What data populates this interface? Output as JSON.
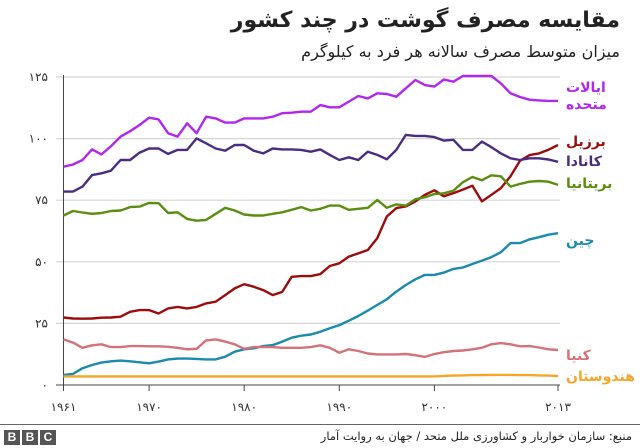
{
  "header": {
    "title": "مقایسه مصرف گوشت در چند کشور",
    "subtitle": "میزان متوسط مصرف سالانه هر فرد به کیلوگرم"
  },
  "footer": {
    "source": "منبع: سازمان خواربار و کشاورزی ملل متحد / جهان به روایت آمار",
    "logo": "BBC"
  },
  "chart_data": {
    "type": "line",
    "title": "مقایسه مصرف گوشت در چند کشور",
    "subtitle": "میزان متوسط مصرف سالانه هر فرد به کیلوگرم",
    "xlim": [
      1961,
      2013
    ],
    "ylim": [
      0,
      125
    ],
    "grid": true,
    "legend": "direct labels at right end of lines",
    "x_ticks": [
      {
        "value": 1961,
        "label": "۱۹۶۱"
      },
      {
        "value": 1970,
        "label": "۱۹۷۰"
      },
      {
        "value": 1980,
        "label": "۱۹۸۰"
      },
      {
        "value": 1990,
        "label": "۱۹۹۰"
      },
      {
        "value": 2000,
        "label": "۲۰۰۰"
      },
      {
        "value": 2013,
        "label": "۲۰۱۳"
      }
    ],
    "y_ticks": [
      {
        "value": 0,
        "label": "۰"
      },
      {
        "value": 25,
        "label": "۲۵"
      },
      {
        "value": 50,
        "label": "۵۰"
      },
      {
        "value": 75,
        "label": "۷۵"
      },
      {
        "value": 100,
        "label": "۱۰۰"
      },
      {
        "value": 125,
        "label": "۱۲۵"
      }
    ],
    "x_start": 1961,
    "x_step": 1,
    "series": [
      {
        "name": "ایالات متحده",
        "color": "#b027ee",
        "values": [
          88.6,
          89.5,
          91.3,
          95.6,
          93.6,
          96.9,
          100.8,
          103,
          105.5,
          108.5,
          107.8,
          102.2,
          100.8,
          106.2,
          102.2,
          108.9,
          108.2,
          106.5,
          106.5,
          108.2,
          108.2,
          108.2,
          108.9,
          110.3,
          110.5,
          110.9,
          110.9,
          113.6,
          112.7,
          112.7,
          115,
          117.3,
          116.3,
          118.4,
          118.1,
          117,
          120.4,
          123.8,
          121.7,
          121.1,
          124,
          123.1,
          125.4,
          125.4,
          125.4,
          125.4,
          122.4,
          118.4,
          116.9,
          115.8,
          115.5,
          115.3,
          115.3
        ]
      },
      {
        "name": "برزیل",
        "color": "#9b0d0d",
        "values": [
          27.4,
          27,
          26.9,
          27,
          27.3,
          27.4,
          27.7,
          29.7,
          30.4,
          30.4,
          29,
          31.1,
          31.7,
          31.1,
          31.7,
          33.1,
          33.8,
          36.5,
          39.2,
          40.9,
          39.9,
          38.5,
          36.5,
          37.8,
          43.9,
          44.2,
          44.2,
          45,
          48.3,
          49.4,
          52.1,
          53.4,
          54.8,
          59.6,
          68.4,
          71.8,
          72.5,
          74.5,
          77.2,
          79,
          76.6,
          77.9,
          79.3,
          80.9,
          74.5,
          77.2,
          79.9,
          84.7,
          91,
          93.3,
          94,
          95.5,
          97.4
        ]
      },
      {
        "name": "کانادا",
        "color": "#4b2c80",
        "values": [
          78.5,
          78.5,
          80.5,
          85.2,
          85.9,
          87,
          91.3,
          91.3,
          94.3,
          96,
          96,
          93.8,
          95.4,
          95.4,
          100.1,
          98.1,
          96,
          95.1,
          97.4,
          97.4,
          95.1,
          94,
          96,
          95.6,
          95.6,
          95.4,
          94.7,
          95.6,
          93.4,
          91.3,
          92.4,
          91.3,
          94.7,
          93.4,
          91.6,
          95.4,
          101.5,
          101.1,
          101.1,
          100.6,
          99.2,
          99.5,
          95.4,
          95.4,
          98.8,
          96.5,
          94,
          92,
          91.3,
          92,
          92,
          91.5,
          90.6
        ]
      },
      {
        "name": "بریتانیا",
        "color": "#5b8e10",
        "values": [
          68.8,
          70.6,
          70,
          69.5,
          69.8,
          70.6,
          70.8,
          72.2,
          72.4,
          73.9,
          73.8,
          69.8,
          70.1,
          67.4,
          66.7,
          67,
          69.5,
          71.9,
          70.8,
          69.2,
          68.8,
          68.8,
          69.5,
          70.1,
          71.1,
          72.2,
          70.8,
          71.5,
          72.8,
          72.8,
          71.1,
          71.5,
          71.9,
          75.1,
          71.9,
          73.3,
          72.8,
          75.4,
          76.2,
          77.5,
          77.8,
          78.9,
          82.3,
          84.4,
          83.1,
          85.1,
          84.7,
          80.5,
          81.6,
          82.5,
          82.8,
          82.5,
          81.2
        ]
      },
      {
        "name": "چین",
        "color": "#1b8aab",
        "values": [
          4.1,
          4.5,
          6.8,
          8.1,
          9.1,
          9.6,
          9.9,
          9.6,
          9.2,
          8.8,
          9.5,
          10.4,
          10.7,
          10.7,
          10.6,
          10.4,
          10.4,
          11.5,
          13.5,
          14.5,
          14.9,
          15.8,
          16.2,
          17.6,
          19.2,
          20,
          20.5,
          21.6,
          23,
          24.3,
          26.1,
          28,
          30.2,
          32.5,
          34.8,
          37.9,
          40.6,
          42.9,
          44.7,
          44.7,
          45.6,
          47.1,
          47.7,
          49.1,
          50.5,
          51.9,
          53.9,
          57.6,
          57.6,
          59.1,
          60,
          61,
          61.6
        ]
      },
      {
        "name": "کنیا",
        "color": "#d4727a",
        "values": [
          18.5,
          17.2,
          15.1,
          16.1,
          16.5,
          15.4,
          15.4,
          15.8,
          15.8,
          15.7,
          15.7,
          15.5,
          15.1,
          14.5,
          14.7,
          18.1,
          18.5,
          17.6,
          16.5,
          14.7,
          15.4,
          15.4,
          15.4,
          15.1,
          15.1,
          15.1,
          15.4,
          16.1,
          15.1,
          13.1,
          14.5,
          13.8,
          12.8,
          12.4,
          12.4,
          12.4,
          12.6,
          12.1,
          11.4,
          12.6,
          13.3,
          13.8,
          14,
          14.5,
          15.1,
          16.5,
          17,
          16.5,
          15.7,
          15.8,
          15.2,
          14.5,
          14.2
        ]
      },
      {
        "name": "هندوستان",
        "color": "#f4a62a",
        "values": [
          3.5,
          3.5,
          3.5,
          3.5,
          3.5,
          3.5,
          3.5,
          3.5,
          3.5,
          3.5,
          3.5,
          3.5,
          3.5,
          3.5,
          3.5,
          3.5,
          3.5,
          3.5,
          3.5,
          3.5,
          3.5,
          3.5,
          3.5,
          3.5,
          3.5,
          3.5,
          3.5,
          3.5,
          3.5,
          3.5,
          3.5,
          3.5,
          3.5,
          3.5,
          3.5,
          3.5,
          3.5,
          3.5,
          3.5,
          3.5,
          3.7,
          3.8,
          3.9,
          4,
          4,
          4.1,
          4.1,
          4.1,
          4,
          4,
          3.9,
          3.8,
          3.6
        ]
      }
    ]
  }
}
